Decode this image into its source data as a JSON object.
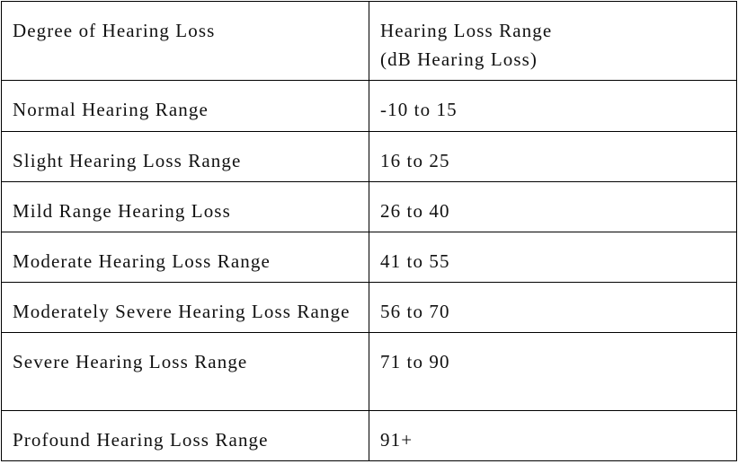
{
  "table": {
    "header": [
      [
        "Degree of Hearing Loss"
      ],
      [
        "Hearing Loss Range",
        "(dB Hearing Loss)"
      ]
    ],
    "rows": [
      [
        "Normal Hearing Range",
        "-10 to 15"
      ],
      [
        "Slight Hearing Loss Range",
        "16 to 25"
      ],
      [
        "Mild Range Hearing Loss",
        "26 to 40"
      ],
      [
        "Moderate Hearing Loss Range",
        "41 to 55"
      ],
      [
        "Moderately Severe Hearing Loss Range",
        "56 to 70"
      ],
      [
        "Severe Hearing Loss Range",
        "71 to 90"
      ],
      [
        "Profound Hearing Loss Range",
        "91+"
      ]
    ]
  }
}
